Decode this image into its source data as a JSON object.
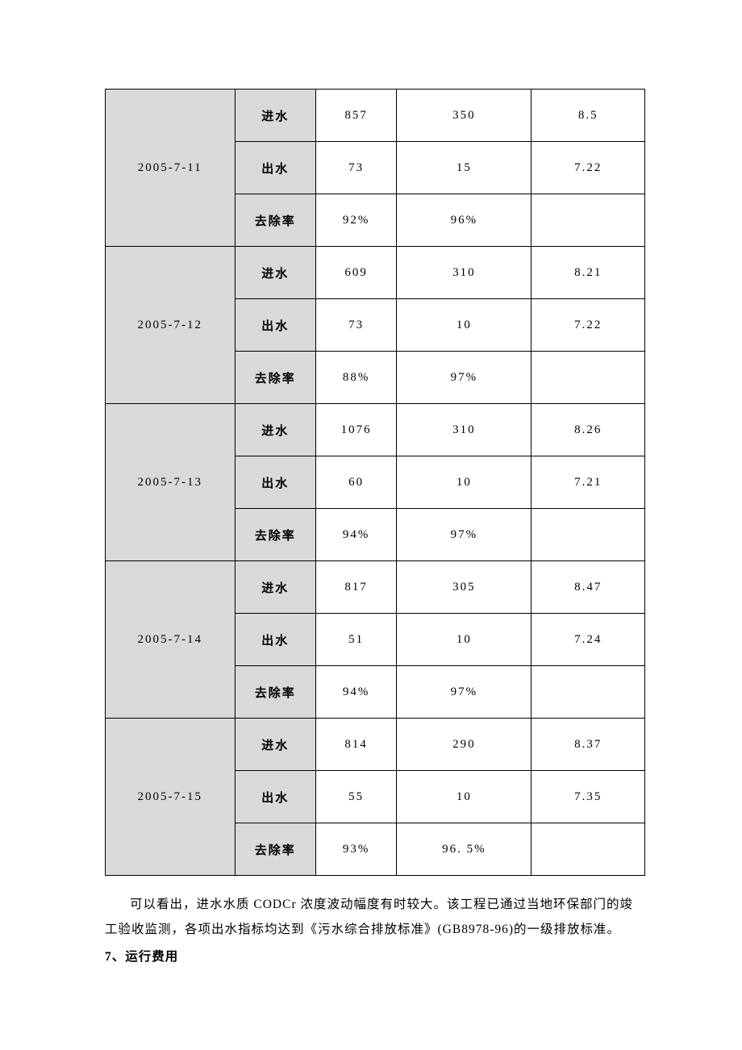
{
  "table": {
    "colors": {
      "header_bg": "#d9d9d9",
      "border": "#000000",
      "bg": "#ffffff",
      "text": "#000000"
    },
    "row_types": {
      "inflow": "进水",
      "outflow": "出水",
      "removal": "去除率"
    },
    "groups": [
      {
        "date": "2005-7-11",
        "rows": [
          {
            "type_key": "inflow",
            "v1": "857",
            "v2": "350",
            "v3": "8.5"
          },
          {
            "type_key": "outflow",
            "v1": "73",
            "v2": "15",
            "v3": "7.22"
          },
          {
            "type_key": "removal",
            "v1": "92%",
            "v2": "96%",
            "v3": ""
          }
        ]
      },
      {
        "date": "2005-7-12",
        "rows": [
          {
            "type_key": "inflow",
            "v1": "609",
            "v2": "310",
            "v3": "8.21"
          },
          {
            "type_key": "outflow",
            "v1": "73",
            "v2": "10",
            "v3": "7.22"
          },
          {
            "type_key": "removal",
            "v1": "88%",
            "v2": "97%",
            "v3": ""
          }
        ]
      },
      {
        "date": "2005-7-13",
        "rows": [
          {
            "type_key": "inflow",
            "v1": "1076",
            "v2": "310",
            "v3": "8.26"
          },
          {
            "type_key": "outflow",
            "v1": "60",
            "v2": "10",
            "v3": "7.21"
          },
          {
            "type_key": "removal",
            "v1": "94%",
            "v2": "97%",
            "v3": ""
          }
        ]
      },
      {
        "date": "2005-7-14",
        "rows": [
          {
            "type_key": "inflow",
            "v1": "817",
            "v2": "305",
            "v3": "8.47"
          },
          {
            "type_key": "outflow",
            "v1": "51",
            "v2": "10",
            "v3": "7.24"
          },
          {
            "type_key": "removal",
            "v1": "94%",
            "v2": "97%",
            "v3": ""
          }
        ]
      },
      {
        "date": "2005-7-15",
        "rows": [
          {
            "type_key": "inflow",
            "v1": "814",
            "v2": "290",
            "v3": "8.37"
          },
          {
            "type_key": "outflow",
            "v1": "55",
            "v2": "10",
            "v3": "7.35"
          },
          {
            "type_key": "removal",
            "v1": "93%",
            "v2": "96. 5%",
            "v3": ""
          }
        ]
      }
    ]
  },
  "paragraph": "可以看出，进水水质 CODCr 浓度波动幅度有时较大。该工程已通过当地环保部门的竣工验收监测，各项出水指标均达到《污水综合排放标准》(GB8978-96)的一级排放标准。",
  "heading": "7、运行费用"
}
